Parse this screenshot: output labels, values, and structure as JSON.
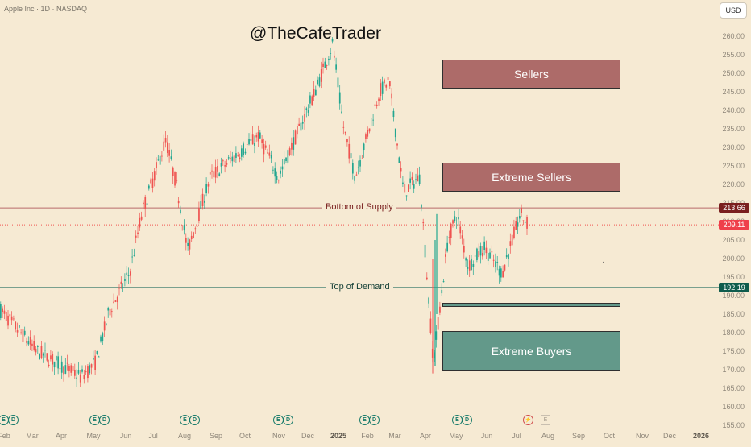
{
  "header": {
    "symbol_line": "Apple Inc · 1D · NASDAQ",
    "currency": "USD"
  },
  "watermark": "@TheCafeTrader",
  "zones": {
    "sellers": "Sellers",
    "extreme_sellers": "Extreme Sellers",
    "extreme_buyers": "Extreme Buyers"
  },
  "levels": {
    "supply": {
      "label": "Bottom of Supply",
      "value": "213.66",
      "price": 213.66,
      "color": "#7a1f1f"
    },
    "current": {
      "value": "209.11",
      "price": 209.11,
      "color": "#ef3f4b"
    },
    "demand": {
      "label": "Top of Demand",
      "value": "192.19",
      "price": 192.19,
      "color": "#0f5c4d"
    }
  },
  "events": {
    "earnings_letter": "E",
    "dividend_letter": "D"
  },
  "chart_data": {
    "type": "candlestick",
    "title": "",
    "y_axis": {
      "side": "right",
      "min": 155,
      "max": 262,
      "ticks": [
        155,
        160,
        165,
        170,
        175,
        180,
        185,
        190,
        195,
        200,
        205,
        210,
        215,
        220,
        225,
        230,
        235,
        240,
        245,
        250,
        255,
        260
      ]
    },
    "x_ticks": [
      "Feb",
      "Mar",
      "Apr",
      "May",
      "Jun",
      "Jul",
      "Aug",
      "Sep",
      "Oct",
      "Nov",
      "Dec",
      "2025",
      "Feb",
      "Mar",
      "Apr",
      "May",
      "Jun",
      "Jul",
      "Aug",
      "Sep",
      "Oct",
      "Nov",
      "Dec",
      "2026"
    ],
    "close_path": [
      {
        "month": "Feb 2024",
        "close": 186
      },
      {
        "month": "Mar 2024",
        "close": 175
      },
      {
        "month": "Apr 2024",
        "close": 168
      },
      {
        "month": "Apr 2024 end",
        "close": 172
      },
      {
        "month": "May 2024",
        "close": 186
      },
      {
        "month": "Jun 2024",
        "close": 195
      },
      {
        "month": "Jun 2024 end",
        "close": 212
      },
      {
        "month": "Jul 2024",
        "close": 232
      },
      {
        "month": "Aug 2024",
        "close": 218
      },
      {
        "month": "Aug 2024 dip",
        "close": 202
      },
      {
        "month": "Sep 2024",
        "close": 222
      },
      {
        "month": "Oct 2024",
        "close": 232
      },
      {
        "month": "Nov 2024",
        "close": 222
      },
      {
        "month": "Dec 2024",
        "close": 245
      },
      {
        "month": "Dec 2024 peak",
        "close": 258
      },
      {
        "month": "Jan 2025",
        "close": 236
      },
      {
        "month": "Jan 2025 low",
        "close": 222
      },
      {
        "month": "Feb 2025",
        "close": 245
      },
      {
        "month": "Feb 2025 high",
        "close": 248
      },
      {
        "month": "Mar 2025",
        "close": 218
      },
      {
        "month": "Mar 2025 late",
        "close": 222
      },
      {
        "month": "Apr 2025 low",
        "close": 172
      },
      {
        "month": "Apr 2025 bounce",
        "close": 205
      },
      {
        "month": "May 2025",
        "close": 212
      },
      {
        "month": "May 2025 mid",
        "close": 198
      },
      {
        "month": "Jun 2025",
        "close": 203
      },
      {
        "month": "Jun 2025 low",
        "close": 196
      },
      {
        "month": "Jul 2025",
        "close": 212
      },
      {
        "month": "Jul 2025 last",
        "close": 209.11
      }
    ],
    "zones": [
      {
        "name": "Sellers",
        "low": 246,
        "high": 253.5
      },
      {
        "name": "Extreme Sellers",
        "low": 219,
        "high": 226.5
      },
      {
        "name": "Extreme Buyers",
        "low": 170,
        "high": 180.5
      },
      {
        "name": "",
        "low": 187.5,
        "high": 188.5
      }
    ],
    "hlines": [
      {
        "label": "Bottom of Supply",
        "price": 213.66
      },
      {
        "label": "",
        "price": 209.11
      },
      {
        "label": "Top of Demand",
        "price": 192.19
      }
    ]
  },
  "colors": {
    "up": "#22a690",
    "down": "#ef5350",
    "sellers": "#ad6b69",
    "buyers": "#63998a",
    "axis_text": "#8f877a"
  }
}
